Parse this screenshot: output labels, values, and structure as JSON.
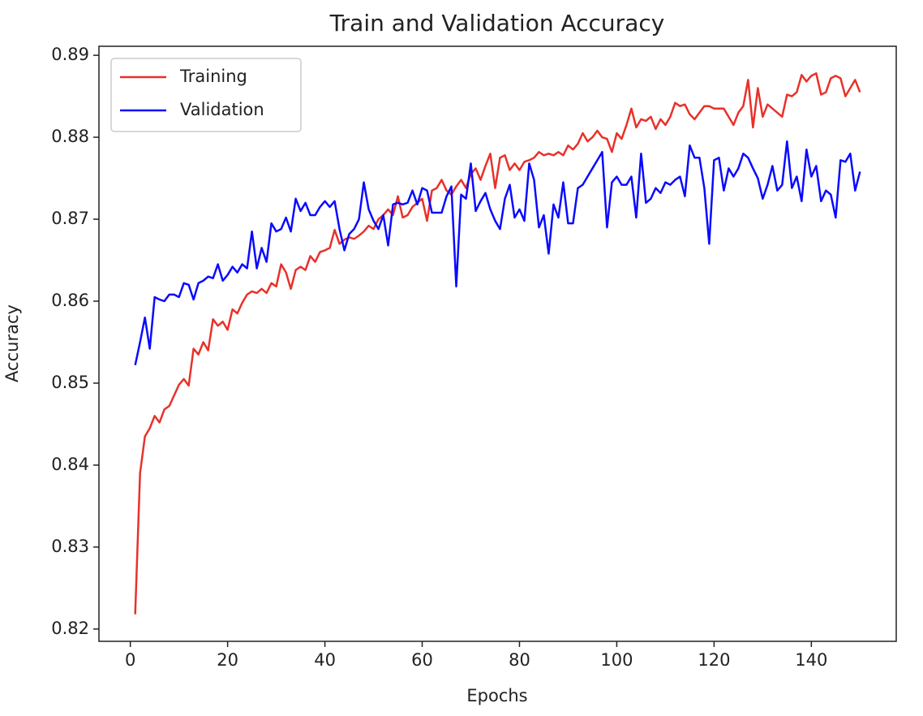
{
  "chart_data": {
    "type": "line",
    "title": "Train and Validation Accuracy",
    "x_label": "Epochs",
    "y_label": "Accuracy",
    "x": [
      1,
      2,
      3,
      4,
      5,
      6,
      7,
      8,
      9,
      10,
      11,
      12,
      13,
      14,
      15,
      16,
      17,
      18,
      19,
      20,
      21,
      22,
      23,
      24,
      25,
      26,
      27,
      28,
      29,
      30,
      31,
      32,
      33,
      34,
      35,
      36,
      37,
      38,
      39,
      40,
      41,
      42,
      43,
      44,
      45,
      46,
      47,
      48,
      49,
      50,
      51,
      52,
      53,
      54,
      55,
      56,
      57,
      58,
      59,
      60,
      61,
      62,
      63,
      64,
      65,
      66,
      67,
      68,
      69,
      70,
      71,
      72,
      73,
      74,
      75,
      76,
      77,
      78,
      79,
      80,
      81,
      82,
      83,
      84,
      85,
      86,
      87,
      88,
      89,
      90,
      91,
      92,
      93,
      94,
      95,
      96,
      97,
      98,
      99,
      100,
      101,
      102,
      103,
      104,
      105,
      106,
      107,
      108,
      109,
      110,
      111,
      112,
      113,
      114,
      115,
      116,
      117,
      118,
      119,
      120,
      121,
      122,
      123,
      124,
      125,
      126,
      127,
      128,
      129,
      130,
      131,
      132,
      133,
      134,
      135,
      136,
      137,
      138,
      139,
      140,
      141,
      142,
      143,
      144,
      145,
      146,
      147,
      148,
      149,
      150
    ],
    "series": [
      {
        "name": "Training",
        "color": "#e8312a",
        "values": [
          0.8218,
          0.839,
          0.8435,
          0.8445,
          0.846,
          0.8452,
          0.8468,
          0.8472,
          0.8485,
          0.8498,
          0.8505,
          0.8497,
          0.8542,
          0.8535,
          0.855,
          0.854,
          0.8578,
          0.857,
          0.8575,
          0.8565,
          0.859,
          0.8585,
          0.8598,
          0.8608,
          0.8612,
          0.861,
          0.8615,
          0.861,
          0.8622,
          0.8618,
          0.8645,
          0.8635,
          0.8615,
          0.8638,
          0.8642,
          0.8638,
          0.8655,
          0.8648,
          0.866,
          0.8662,
          0.8665,
          0.8687,
          0.867,
          0.8675,
          0.8678,
          0.8676,
          0.868,
          0.8685,
          0.8692,
          0.8688,
          0.87,
          0.8705,
          0.8712,
          0.8705,
          0.8728,
          0.8702,
          0.8705,
          0.8715,
          0.872,
          0.8725,
          0.8698,
          0.8735,
          0.8738,
          0.8748,
          0.8735,
          0.873,
          0.874,
          0.8748,
          0.8738,
          0.8755,
          0.8762,
          0.8748,
          0.8765,
          0.878,
          0.8738,
          0.8775,
          0.8778,
          0.876,
          0.8768,
          0.876,
          0.877,
          0.8772,
          0.8775,
          0.8782,
          0.8778,
          0.878,
          0.8778,
          0.8782,
          0.8778,
          0.879,
          0.8785,
          0.8792,
          0.8805,
          0.8795,
          0.88,
          0.8808,
          0.88,
          0.8798,
          0.8782,
          0.8805,
          0.8798,
          0.8815,
          0.8835,
          0.8812,
          0.8822,
          0.882,
          0.8825,
          0.881,
          0.8822,
          0.8815,
          0.8825,
          0.8842,
          0.8838,
          0.884,
          0.8828,
          0.8822,
          0.883,
          0.8838,
          0.8838,
          0.8835,
          0.8835,
          0.8835,
          0.8825,
          0.8815,
          0.883,
          0.8838,
          0.887,
          0.8812,
          0.886,
          0.8825,
          0.884,
          0.8835,
          0.883,
          0.8825,
          0.8852,
          0.885,
          0.8855,
          0.8876,
          0.8868,
          0.8875,
          0.8878,
          0.8852,
          0.8855,
          0.8872,
          0.8875,
          0.8872,
          0.885,
          0.886,
          0.887,
          0.8855
        ]
      },
      {
        "name": "Validation",
        "color": "#0a0aff",
        "values": [
          0.8522,
          0.855,
          0.858,
          0.8542,
          0.8605,
          0.8602,
          0.86,
          0.8608,
          0.8608,
          0.8605,
          0.8622,
          0.862,
          0.8602,
          0.8622,
          0.8625,
          0.863,
          0.8628,
          0.8645,
          0.8625,
          0.8632,
          0.8642,
          0.8635,
          0.8645,
          0.864,
          0.8685,
          0.864,
          0.8665,
          0.8648,
          0.8695,
          0.8685,
          0.8688,
          0.8702,
          0.8685,
          0.8725,
          0.871,
          0.872,
          0.8705,
          0.8705,
          0.8715,
          0.8722,
          0.8715,
          0.8722,
          0.8688,
          0.8662,
          0.8682,
          0.8688,
          0.87,
          0.8745,
          0.8712,
          0.8698,
          0.8688,
          0.8705,
          0.8668,
          0.8718,
          0.872,
          0.8718,
          0.872,
          0.8735,
          0.8718,
          0.8738,
          0.8735,
          0.8708,
          0.8708,
          0.8708,
          0.8728,
          0.874,
          0.8618,
          0.873,
          0.8725,
          0.8768,
          0.871,
          0.8722,
          0.8732,
          0.8712,
          0.8698,
          0.8688,
          0.8725,
          0.8742,
          0.8702,
          0.8712,
          0.8698,
          0.8768,
          0.8748,
          0.869,
          0.8705,
          0.8658,
          0.8718,
          0.8702,
          0.8745,
          0.8695,
          0.8695,
          0.8738,
          0.8742,
          0.8752,
          0.8762,
          0.8772,
          0.8782,
          0.869,
          0.8745,
          0.8752,
          0.8742,
          0.8742,
          0.8752,
          0.8702,
          0.878,
          0.872,
          0.8725,
          0.8738,
          0.8732,
          0.8745,
          0.8742,
          0.8748,
          0.8752,
          0.8728,
          0.879,
          0.8775,
          0.8775,
          0.8738,
          0.867,
          0.8772,
          0.8775,
          0.8735,
          0.8762,
          0.8752,
          0.8762,
          0.878,
          0.8775,
          0.8762,
          0.875,
          0.8725,
          0.8742,
          0.8765,
          0.8735,
          0.8742,
          0.8795,
          0.8738,
          0.8752,
          0.8722,
          0.8785,
          0.8752,
          0.8765,
          0.8722,
          0.8735,
          0.873,
          0.8702,
          0.8772,
          0.877,
          0.878,
          0.8735,
          0.8758
        ]
      }
    ],
    "xlim": [
      -6.45,
      157.45
    ],
    "ylim": [
      0.8185,
      0.8911
    ],
    "xticks": [
      0,
      20,
      40,
      60,
      80,
      100,
      120,
      140
    ],
    "yticks": [
      0.82,
      0.83,
      0.84,
      0.85,
      0.86,
      0.87,
      0.88,
      0.89
    ],
    "legend": "upper left"
  }
}
